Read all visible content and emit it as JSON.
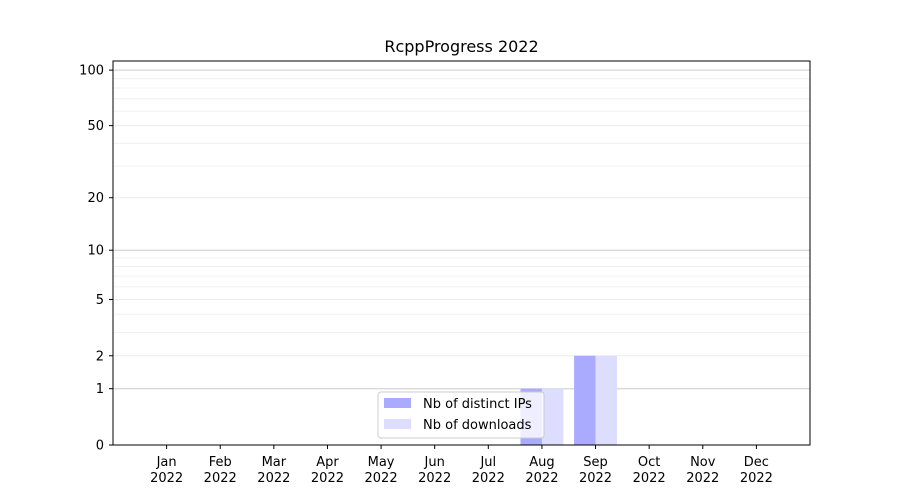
{
  "chart_data": {
    "type": "bar",
    "title": "RcppProgress 2022",
    "xlabel": "",
    "ylabel": "",
    "categories": [
      "Jan\n2022",
      "Feb\n2022",
      "Mar\n2022",
      "Apr\n2022",
      "May\n2022",
      "Jun\n2022",
      "Jul\n2022",
      "Aug\n2022",
      "Sep\n2022",
      "Oct\n2022",
      "Nov\n2022",
      "Dec\n2022"
    ],
    "series": [
      {
        "name": "Nb of distinct IPs",
        "values": [
          0,
          0,
          0,
          0,
          0,
          0,
          0,
          1,
          2,
          0,
          0,
          0
        ],
        "color": "#aaaaff"
      },
      {
        "name": "Nb of downloads",
        "values": [
          0,
          0,
          0,
          0,
          0,
          0,
          0,
          1,
          2,
          0,
          0,
          0
        ],
        "color": "#ddddff"
      }
    ],
    "yscale": "log(1+y)",
    "yticks": [
      0,
      1,
      2,
      5,
      10,
      20,
      50,
      100
    ],
    "ylim": [
      0,
      112
    ],
    "grid": true,
    "legend": "lower-center"
  }
}
